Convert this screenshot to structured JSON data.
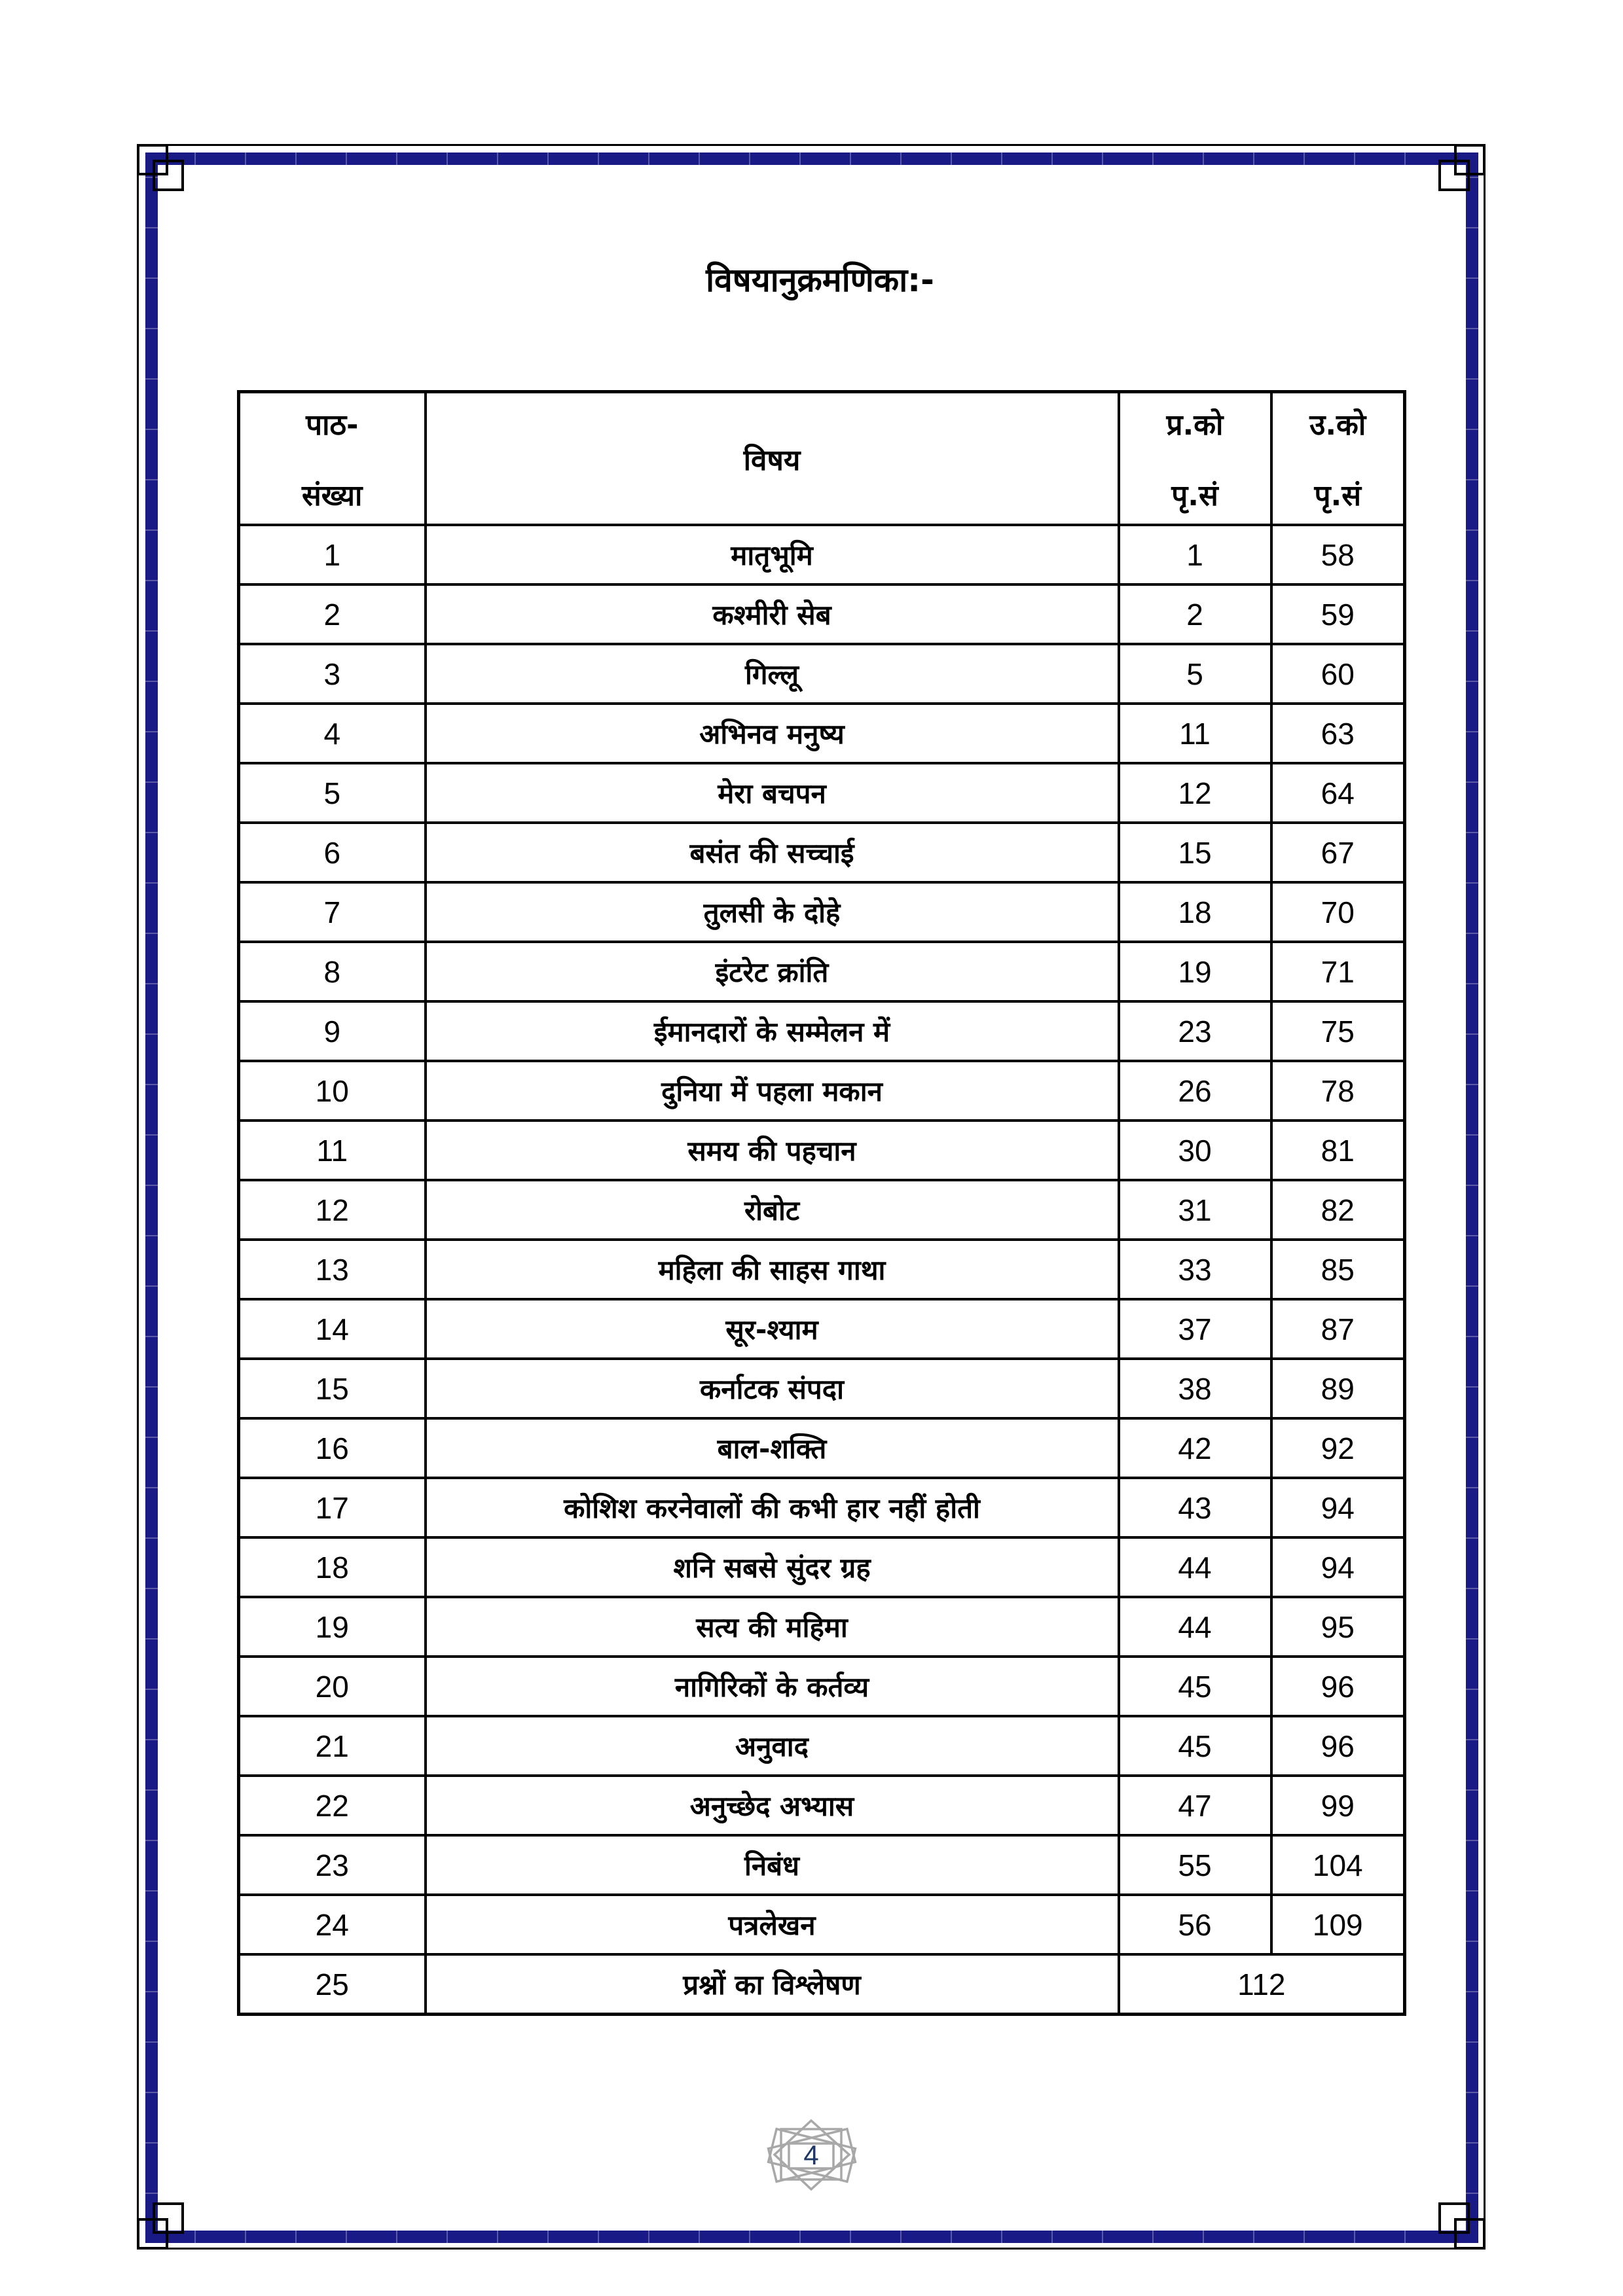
{
  "page": {
    "title": "विषयानुक्रमणिका:-",
    "page_number": "4"
  },
  "colors": {
    "border_band_navy": "#1a1a86",
    "border_line_black": "#000000",
    "ornament_grey": "#a8a8a8",
    "page_number_blue": "#1f3864"
  },
  "table": {
    "headers": {
      "lesson_line1": "पाठ-",
      "lesson_line2": "संख्या",
      "subject": "विषय",
      "question_line1": "प्र.को",
      "question_line2": "पृ.सं",
      "answer_line1": "उ.को",
      "answer_line2": "पृ.सं"
    },
    "rows": [
      {
        "no": "1",
        "subject": "मातृभूमि",
        "q": "1",
        "a": "58"
      },
      {
        "no": "2",
        "subject": "कश्मीरी सेब",
        "q": "2",
        "a": "59"
      },
      {
        "no": "3",
        "subject": "गिल्लू",
        "q": "5",
        "a": "60"
      },
      {
        "no": "4",
        "subject": "अभिनव मनुष्य",
        "q": "11",
        "a": "63"
      },
      {
        "no": "5",
        "subject": "मेरा बचपन",
        "q": "12",
        "a": "64"
      },
      {
        "no": "6",
        "subject": "बसंत की सच्चाई",
        "q": "15",
        "a": "67"
      },
      {
        "no": "7",
        "subject": "तुलसी के दोहे",
        "q": "18",
        "a": "70"
      },
      {
        "no": "8",
        "subject": "इंटरेट क्रांति",
        "q": "19",
        "a": "71"
      },
      {
        "no": "9",
        "subject": "ईमानदारों के सम्मेलन में",
        "q": "23",
        "a": "75"
      },
      {
        "no": "10",
        "subject": "दुनिया में पहला मकान",
        "q": "26",
        "a": "78"
      },
      {
        "no": "11",
        "subject": "समय की पहचान",
        "q": "30",
        "a": "81"
      },
      {
        "no": "12",
        "subject": "रोबोट",
        "q": "31",
        "a": "82"
      },
      {
        "no": "13",
        "subject": "महिला की साहस गाथा",
        "q": "33",
        "a": "85"
      },
      {
        "no": "14",
        "subject": "सूर-श्याम",
        "q": "37",
        "a": "87"
      },
      {
        "no": "15",
        "subject": "कर्नाटक संपदा",
        "q": "38",
        "a": "89"
      },
      {
        "no": "16",
        "subject": "बाल-शक्ति",
        "q": "42",
        "a": "92"
      },
      {
        "no": "17",
        "subject": "कोशिश करनेवालों की कभी हार नहीं होती",
        "q": "43",
        "a": "94"
      },
      {
        "no": "18",
        "subject": "शनि सबसे सुंदर ग्रह",
        "q": "44",
        "a": "94"
      },
      {
        "no": "19",
        "subject": "सत्य की महिमा",
        "q": "44",
        "a": "95"
      },
      {
        "no": "20",
        "subject": "नागिरिकों के कर्तव्य",
        "q": "45",
        "a": "96"
      },
      {
        "no": "21",
        "subject": "अनुवाद",
        "q": "45",
        "a": "96"
      },
      {
        "no": "22",
        "subject": "अनुच्छेद अभ्यास",
        "q": "47",
        "a": "99"
      },
      {
        "no": "23",
        "subject": "निबंध",
        "q": "55",
        "a": "104"
      },
      {
        "no": "24",
        "subject": "पत्रलेखन",
        "q": "56",
        "a": "109"
      },
      {
        "no": "25",
        "subject": "प्रश्नों का विश्लेषण",
        "q": "112",
        "a": null,
        "merged": true
      }
    ]
  }
}
